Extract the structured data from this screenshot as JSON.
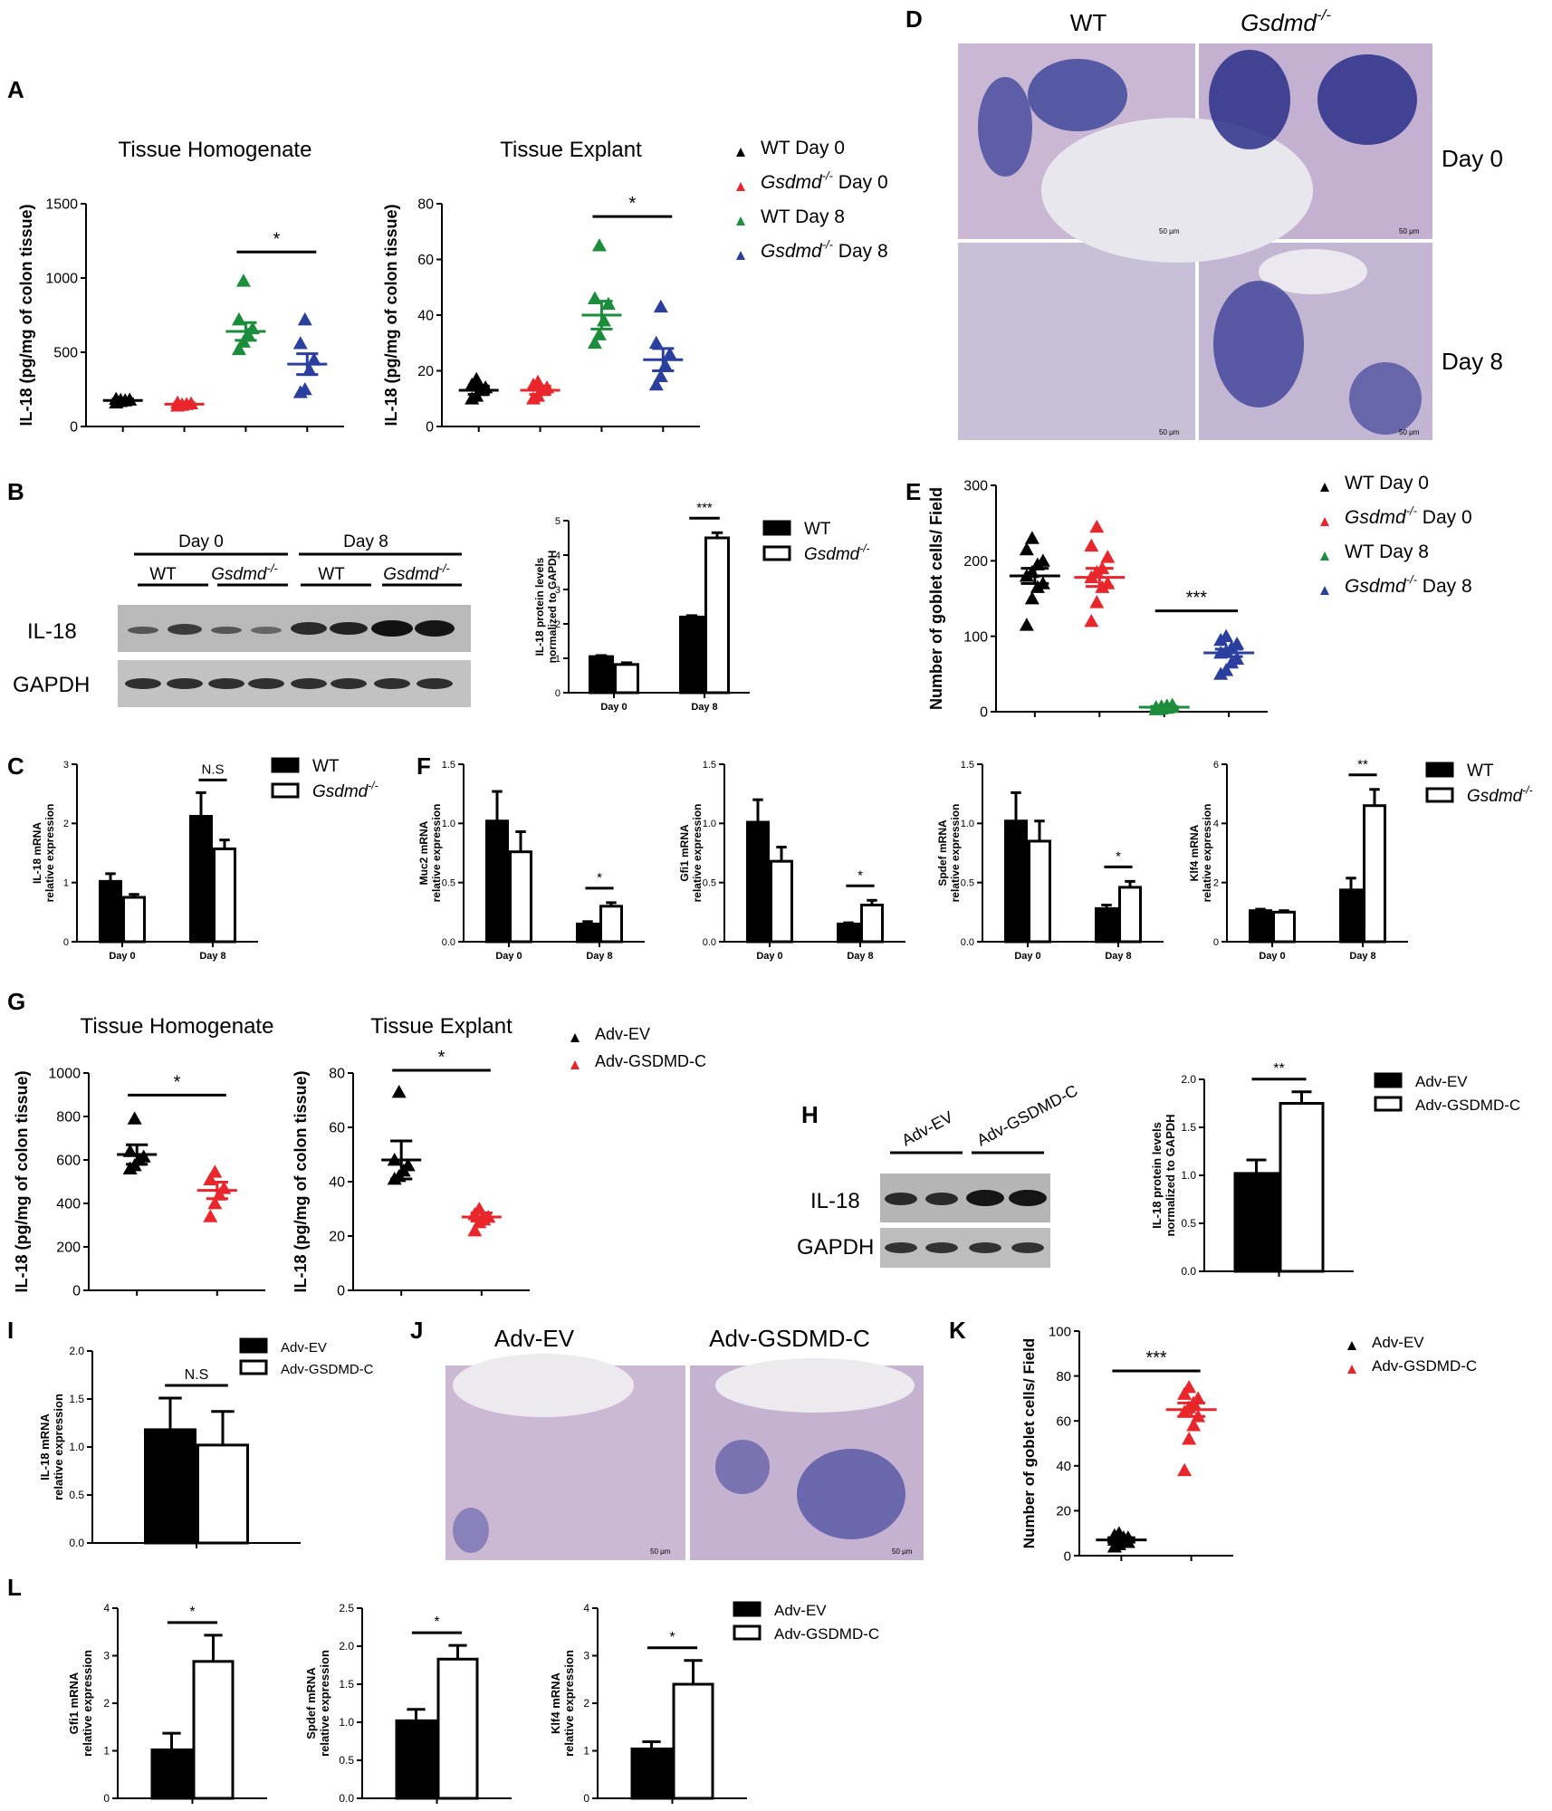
{
  "panels": {
    "A": {
      "letter": "A",
      "legend": [
        {
          "label": "WT Day 0",
          "color": "#000000"
        },
        {
          "label": "Gsdmd",
          "suffix": "Day 0",
          "sup": "-/-",
          "color": "#e8262b"
        },
        {
          "label": "WT Day 8",
          "color": "#1b8d3c"
        },
        {
          "label": "Gsdmd",
          "suffix": "Day 8",
          "sup": "-/-",
          "color": "#2b3f9e"
        }
      ]
    },
    "B": {
      "letter": "B",
      "blot": {
        "groups": [
          "Day 0",
          "Day 8"
        ],
        "lanes": [
          "WT",
          "Gsdmd",
          "WT",
          "Gsdmd"
        ],
        "sup": "-/-",
        "rows": [
          "IL-18",
          "GAPDH"
        ]
      },
      "legend": [
        {
          "label": "WT",
          "fill": "#000000"
        },
        {
          "label": "Gsdmd",
          "sup": "-/-",
          "fill": "#ffffff"
        }
      ]
    },
    "C": {
      "letter": "C",
      "legend": [
        {
          "label": "WT",
          "fill": "#000000"
        },
        {
          "label": "Gsdmd",
          "sup": "-/-",
          "fill": "#ffffff"
        }
      ]
    },
    "D": {
      "letter": "D",
      "cols": [
        "WT",
        "Gsdmd"
      ],
      "sup": "-/-",
      "rows": [
        "Day 0",
        "Day 8"
      ],
      "scale": "50 μm"
    },
    "E": {
      "letter": "E",
      "legend": [
        {
          "label": "WT Day 0",
          "color": "#000000"
        },
        {
          "label": "Gsdmd",
          "suffix": "Day 0",
          "sup": "-/-",
          "color": "#e8262b"
        },
        {
          "label": "WT Day 8",
          "color": "#1b8d3c"
        },
        {
          "label": "Gsdmd",
          "suffix": "Day 8",
          "sup": "-/-",
          "color": "#2b3f9e"
        }
      ]
    },
    "F": {
      "letter": "F",
      "legend": [
        {
          "label": "WT",
          "fill": "#000000"
        },
        {
          "label": "Gsdmd",
          "sup": "-/-",
          "fill": "#ffffff"
        }
      ]
    },
    "G": {
      "letter": "G",
      "legend": [
        {
          "label": "Adv-EV",
          "color": "#000000"
        },
        {
          "label": "Adv-GSDMD-C",
          "color": "#e8262b"
        }
      ]
    },
    "H": {
      "letter": "H",
      "blot": {
        "lanes": [
          "Adv-EV",
          "Adv-GSDMD-C"
        ],
        "rows": [
          "IL-18",
          "GAPDH"
        ]
      },
      "legend": [
        {
          "label": "Adv-EV",
          "fill": "#000000"
        },
        {
          "label": "Adv-GSDMD-C",
          "fill": "#ffffff"
        }
      ]
    },
    "I": {
      "letter": "I",
      "legend": [
        {
          "label": "Adv-EV",
          "fill": "#000000"
        },
        {
          "label": "Adv-GSDMD-C",
          "fill": "#ffffff"
        }
      ]
    },
    "J": {
      "letter": "J",
      "cols": [
        "Adv-EV",
        "Adv-GSDMD-C"
      ],
      "scale": "50 μm"
    },
    "K": {
      "letter": "K",
      "legend": [
        {
          "label": "Adv-EV",
          "color": "#000000"
        },
        {
          "label": "Adv-GSDMD-C",
          "color": "#e8262b"
        }
      ]
    },
    "L": {
      "letter": "L",
      "legend": [
        {
          "label": "Adv-EV",
          "fill": "#000000"
        },
        {
          "label": "Adv-GSDMD-C",
          "fill": "#ffffff"
        }
      ]
    }
  },
  "colors": {
    "black": "#000000",
    "red": "#e8262b",
    "green": "#1b8d3c",
    "blue": "#2b3f9e"
  },
  "chart_data": [
    {
      "id": "A1",
      "type": "scatter",
      "title": "Tissue Homogenate",
      "ylabel": "IL-18 (pg/mg of colon tissue)",
      "ylim": [
        0,
        1500
      ],
      "yticks": [
        0,
        500,
        1000,
        1500
      ],
      "groups": [
        {
          "color": "black",
          "mean": 175,
          "sem": 12,
          "points": [
            160,
            170,
            175,
            180,
            185,
            178
          ]
        },
        {
          "color": "red",
          "mean": 150,
          "sem": 10,
          "points": [
            140,
            145,
            150,
            155,
            160,
            148
          ]
        },
        {
          "color": "green",
          "mean": 640,
          "sem": 60,
          "points": [
            520,
            570,
            620,
            660,
            720,
            980
          ]
        },
        {
          "color": "blue",
          "mean": 420,
          "sem": 70,
          "points": [
            230,
            250,
            380,
            450,
            560,
            720
          ]
        }
      ],
      "sig": [
        {
          "from": 2,
          "to": 3,
          "label": "*"
        }
      ]
    },
    {
      "id": "A2",
      "type": "scatter",
      "title": "Tissue Explant",
      "ylabel": "IL-18 (pg/mg of colon tissue)",
      "ylim": [
        0,
        80
      ],
      "yticks": [
        0,
        20,
        40,
        60,
        80
      ],
      "groups": [
        {
          "color": "black",
          "mean": 13,
          "sem": 1.5,
          "points": [
            10,
            11,
            13,
            14,
            15,
            17
          ]
        },
        {
          "color": "red",
          "mean": 13,
          "sem": 1.5,
          "points": [
            10,
            11,
            13,
            14,
            15,
            16
          ]
        },
        {
          "color": "green",
          "mean": 40,
          "sem": 5,
          "points": [
            30,
            33,
            38,
            44,
            46,
            65
          ]
        },
        {
          "color": "blue",
          "mean": 24,
          "sem": 4,
          "points": [
            15,
            18,
            22,
            26,
            30,
            43
          ]
        }
      ],
      "sig": [
        {
          "from": 2,
          "to": 3,
          "label": "*"
        }
      ]
    },
    {
      "id": "B",
      "type": "bar",
      "categories": [
        "Day 0",
        "Day 8"
      ],
      "ylabel": "IL-18 protein levels normalized to GAPDH",
      "ylim": [
        0,
        5
      ],
      "yticks": [
        0,
        1,
        2,
        3,
        4,
        5
      ],
      "series": [
        {
          "name": "WT",
          "values": [
            1.05,
            2.2
          ],
          "err": [
            0.03,
            0.04
          ]
        },
        {
          "name": "Gsdmd-/-",
          "values": [
            0.82,
            4.5
          ],
          "err": [
            0.05,
            0.15
          ]
        }
      ],
      "sig": [
        {
          "cat": 1,
          "label": "***"
        }
      ]
    },
    {
      "id": "C",
      "type": "bar",
      "categories": [
        "Day 0",
        "Day 8"
      ],
      "ylabel": "IL-18 mRNA relative expression",
      "ylim": [
        0,
        3
      ],
      "yticks": [
        0,
        1,
        2,
        3
      ],
      "series": [
        {
          "name": "WT",
          "values": [
            1.02,
            2.12
          ],
          "err": [
            0.13,
            0.4
          ]
        },
        {
          "name": "Gsdmd-/-",
          "values": [
            0.75,
            1.57
          ],
          "err": [
            0.05,
            0.15
          ]
        }
      ],
      "sig": [
        {
          "cat": 1,
          "label": "N.S"
        }
      ]
    },
    {
      "id": "E",
      "type": "scatter",
      "ylabel": "Number of goblet cells/ Field",
      "ylim": [
        0,
        300
      ],
      "yticks": [
        0,
        100,
        200,
        300
      ],
      "groups": [
        {
          "color": "black",
          "mean": 180,
          "sem": 10,
          "points": [
            115,
            150,
            165,
            170,
            180,
            185,
            195,
            200,
            215,
            230
          ]
        },
        {
          "color": "red",
          "mean": 178,
          "sem": 12,
          "points": [
            120,
            145,
            165,
            170,
            178,
            185,
            190,
            205,
            220,
            245
          ]
        },
        {
          "color": "green",
          "mean": 6,
          "sem": 1,
          "points": [
            3,
            4,
            5,
            6,
            6,
            7,
            8,
            9
          ]
        },
        {
          "color": "blue",
          "mean": 78,
          "sem": 5,
          "points": [
            50,
            55,
            65,
            70,
            78,
            80,
            85,
            90,
            95,
            100
          ]
        }
      ],
      "sig": [
        {
          "from": 2,
          "to": 3,
          "label": "***"
        }
      ]
    },
    {
      "id": "F1",
      "type": "bar",
      "categories": [
        "Day 0",
        "Day 8"
      ],
      "ylabel": "Muc2 mRNA relative expression",
      "ylim": [
        0,
        1.5
      ],
      "yticks": [
        0.0,
        0.5,
        1.0,
        1.5
      ],
      "series": [
        {
          "name": "WT",
          "values": [
            1.02,
            0.15
          ],
          "err": [
            0.25,
            0.02
          ]
        },
        {
          "name": "Gsdmd-/-",
          "values": [
            0.76,
            0.3
          ],
          "err": [
            0.17,
            0.03
          ]
        }
      ],
      "sig": [
        {
          "cat": 1,
          "label": "*"
        }
      ]
    },
    {
      "id": "F2",
      "type": "bar",
      "categories": [
        "Day 0",
        "Day 8"
      ],
      "ylabel": "Gfi1 mRNA relative expression",
      "ylim": [
        0,
        1.5
      ],
      "yticks": [
        0.0,
        0.5,
        1.0,
        1.5
      ],
      "series": [
        {
          "name": "WT",
          "values": [
            1.01,
            0.15
          ],
          "err": [
            0.19,
            0.01
          ]
        },
        {
          "name": "Gsdmd-/-",
          "values": [
            0.68,
            0.31
          ],
          "err": [
            0.12,
            0.04
          ]
        }
      ],
      "sig": [
        {
          "cat": 1,
          "label": "*"
        }
      ]
    },
    {
      "id": "F3",
      "type": "bar",
      "categories": [
        "Day 0",
        "Day 8"
      ],
      "ylabel": "Spdef mRNA relative expression",
      "ylim": [
        0,
        1.5
      ],
      "yticks": [
        0.0,
        0.5,
        1.0,
        1.5
      ],
      "series": [
        {
          "name": "WT",
          "values": [
            1.02,
            0.28
          ],
          "err": [
            0.24,
            0.03
          ]
        },
        {
          "name": "Gsdmd-/-",
          "values": [
            0.85,
            0.46
          ],
          "err": [
            0.17,
            0.05
          ]
        }
      ],
      "sig": [
        {
          "cat": 1,
          "label": "*"
        }
      ]
    },
    {
      "id": "F4",
      "type": "bar",
      "categories": [
        "Day 0",
        "Day 8"
      ],
      "ylabel": "Klf4 mRNA relative expression",
      "ylim": [
        0,
        6
      ],
      "yticks": [
        0,
        2,
        4,
        6
      ],
      "series": [
        {
          "name": "WT",
          "values": [
            1.05,
            1.75
          ],
          "err": [
            0.05,
            0.4
          ]
        },
        {
          "name": "Gsdmd-/-",
          "values": [
            1.0,
            4.6
          ],
          "err": [
            0.05,
            0.55
          ]
        }
      ],
      "sig": [
        {
          "cat": 1,
          "label": "**"
        }
      ]
    },
    {
      "id": "G1",
      "type": "scatter",
      "title": "Tissue Homogenate",
      "ylabel": "IL-18 (pg/mg of colon tissue)",
      "ylim": [
        0,
        1000
      ],
      "yticks": [
        0,
        200,
        400,
        600,
        800,
        1000
      ],
      "groups": [
        {
          "color": "black",
          "mean": 625,
          "sem": 45,
          "points": [
            560,
            575,
            600,
            615,
            640,
            790
          ]
        },
        {
          "color": "red",
          "mean": 460,
          "sem": 38,
          "points": [
            340,
            400,
            440,
            470,
            510,
            545
          ]
        }
      ],
      "sig": [
        {
          "from": 0,
          "to": 1,
          "label": "*"
        }
      ]
    },
    {
      "id": "G2",
      "type": "scatter",
      "title": "Tissue Explant",
      "ylabel": "IL-18 (pg/mg of colon tissue)",
      "ylim": [
        0,
        80
      ],
      "yticks": [
        0,
        20,
        40,
        60,
        80
      ],
      "groups": [
        {
          "color": "black",
          "mean": 48,
          "sem": 7,
          "points": [
            41,
            42,
            44,
            46,
            48,
            73
          ]
        },
        {
          "color": "red",
          "mean": 27,
          "sem": 1.5,
          "points": [
            22,
            25,
            26,
            27,
            28,
            30
          ]
        }
      ],
      "sig": [
        {
          "from": 0,
          "to": 1,
          "label": "*"
        }
      ]
    },
    {
      "id": "H",
      "type": "bar",
      "categories": [
        ""
      ],
      "ylabel": "IL-18 protein levels normalized to GAPDH",
      "ylim": [
        0,
        2.0
      ],
      "yticks": [
        0.0,
        0.5,
        1.0,
        1.5,
        2.0
      ],
      "series": [
        {
          "name": "Adv-EV",
          "values": [
            1.02
          ],
          "err": [
            0.14
          ]
        },
        {
          "name": "Adv-GSDMD-C",
          "values": [
            1.75
          ],
          "err": [
            0.12
          ]
        }
      ],
      "sig": [
        {
          "cat": 0,
          "label": "**"
        }
      ]
    },
    {
      "id": "I",
      "type": "bar",
      "categories": [
        ""
      ],
      "ylabel": "IL-18 mRNA relative expression",
      "ylim": [
        0,
        2.0
      ],
      "yticks": [
        0.0,
        0.5,
        1.0,
        1.5,
        2.0
      ],
      "series": [
        {
          "name": "Adv-EV",
          "values": [
            1.18
          ],
          "err": [
            0.33
          ]
        },
        {
          "name": "Adv-GSDMD-C",
          "values": [
            1.02
          ],
          "err": [
            0.35
          ]
        }
      ],
      "sig": [
        {
          "cat": 0,
          "label": "N.S"
        }
      ]
    },
    {
      "id": "K",
      "type": "scatter",
      "ylabel": "Number of goblet cells/ Field",
      "ylim": [
        0,
        100
      ],
      "yticks": [
        0,
        20,
        40,
        60,
        80,
        100
      ],
      "groups": [
        {
          "color": "black",
          "mean": 7,
          "sem": 1,
          "points": [
            4,
            5,
            6,
            6,
            7,
            7,
            8,
            8,
            9,
            10
          ]
        },
        {
          "color": "red",
          "mean": 65,
          "sem": 3,
          "points": [
            38,
            52,
            58,
            62,
            64,
            66,
            68,
            70,
            72,
            75
          ]
        }
      ],
      "sig": [
        {
          "from": 0,
          "to": 1,
          "label": "***"
        }
      ]
    },
    {
      "id": "L1",
      "type": "bar",
      "categories": [
        ""
      ],
      "ylabel": "Gfi1 mRNA relative expression",
      "ylim": [
        0,
        4
      ],
      "yticks": [
        0,
        1,
        2,
        3,
        4
      ],
      "series": [
        {
          "name": "Adv-EV",
          "values": [
            1.02
          ],
          "err": [
            0.35
          ]
        },
        {
          "name": "Adv-GSDMD-C",
          "values": [
            2.88
          ],
          "err": [
            0.55
          ]
        }
      ],
      "sig": [
        {
          "cat": 0,
          "label": "*"
        }
      ]
    },
    {
      "id": "L2",
      "type": "bar",
      "categories": [
        ""
      ],
      "ylabel": "Spdef mRNA relative expression",
      "ylim": [
        0,
        2.5
      ],
      "yticks": [
        0.0,
        0.5,
        1.0,
        1.5,
        2.0,
        2.5
      ],
      "series": [
        {
          "name": "Adv-EV",
          "values": [
            1.02
          ],
          "err": [
            0.15
          ]
        },
        {
          "name": "Adv-GSDMD-C",
          "values": [
            1.83
          ],
          "err": [
            0.18
          ]
        }
      ],
      "sig": [
        {
          "cat": 0,
          "label": "*"
        }
      ]
    },
    {
      "id": "L3",
      "type": "bar",
      "categories": [
        ""
      ],
      "ylabel": "Klf4 mRNA relative expression",
      "ylim": [
        0,
        4
      ],
      "yticks": [
        0,
        1,
        2,
        3,
        4
      ],
      "series": [
        {
          "name": "Adv-EV",
          "values": [
            1.04
          ],
          "err": [
            0.15
          ]
        },
        {
          "name": "Adv-GSDMD-C",
          "values": [
            2.4
          ],
          "err": [
            0.5
          ]
        }
      ],
      "sig": [
        {
          "cat": 0,
          "label": "*"
        }
      ]
    }
  ]
}
